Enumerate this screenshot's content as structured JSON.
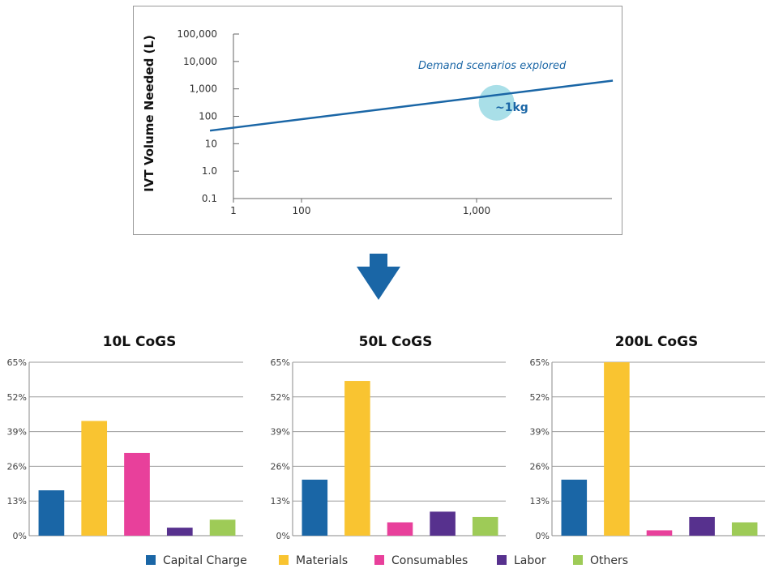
{
  "chart_data": [
    {
      "type": "line",
      "ylabel": "IVT Volume Needed (L)",
      "xscale": "log",
      "yscale": "log",
      "x_ticks": [
        "1",
        "100",
        "1,000"
      ],
      "y_ticks": [
        "100,000",
        "10,000",
        "1,000",
        "100",
        "10",
        "1.0",
        "0.1"
      ],
      "series": [
        {
          "x": [
            30,
            6000
          ],
          "y": [
            30,
            2000
          ],
          "color": "#1a66a6"
        }
      ],
      "annotations": [
        {
          "text": "Demand scenarios explored",
          "style": "italic",
          "color": "#1a66a6"
        },
        {
          "text": "~1kg",
          "x": 1300,
          "y": 500,
          "color": "#1a66a6",
          "highlight_color": "#a9dfe8"
        }
      ],
      "grid": false
    },
    {
      "type": "bar",
      "title": "10L CoGS",
      "categories": [
        "Capital Charge",
        "Materials",
        "Consumables",
        "Labor",
        "Others"
      ],
      "values": [
        17,
        43,
        31,
        3,
        6
      ],
      "y_ticks": [
        "0%",
        "13%",
        "26%",
        "39%",
        "52%",
        "65%"
      ],
      "ylim": [
        0,
        65
      ],
      "grid": true
    },
    {
      "type": "bar",
      "title": "50L CoGS",
      "categories": [
        "Capital Charge",
        "Materials",
        "Consumables",
        "Labor",
        "Others"
      ],
      "values": [
        21,
        58,
        5,
        9,
        7
      ],
      "y_ticks": [
        "0%",
        "13%",
        "26%",
        "39%",
        "52%",
        "65%"
      ],
      "ylim": [
        0,
        65
      ],
      "grid": true
    },
    {
      "type": "bar",
      "title": "200L CoGS",
      "categories": [
        "Capital Charge",
        "Materials",
        "Consumables",
        "Labor",
        "Others"
      ],
      "values": [
        21,
        65,
        2,
        7,
        5
      ],
      "y_ticks": [
        "0%",
        "13%",
        "26%",
        "39%",
        "52%",
        "65%"
      ],
      "ylim": [
        0,
        65
      ],
      "grid": true
    }
  ],
  "legend": [
    {
      "label": "Capital Charge",
      "color": "#1a66a6"
    },
    {
      "label": "Materials",
      "color": "#f9c431"
    },
    {
      "label": "Consumables",
      "color": "#e8409b"
    },
    {
      "label": "Labor",
      "color": "#57318e"
    },
    {
      "label": "Others",
      "color": "#9ecb57"
    }
  ],
  "arrow": {
    "icon": "down-arrow-icon",
    "color": "#1a66a6"
  }
}
